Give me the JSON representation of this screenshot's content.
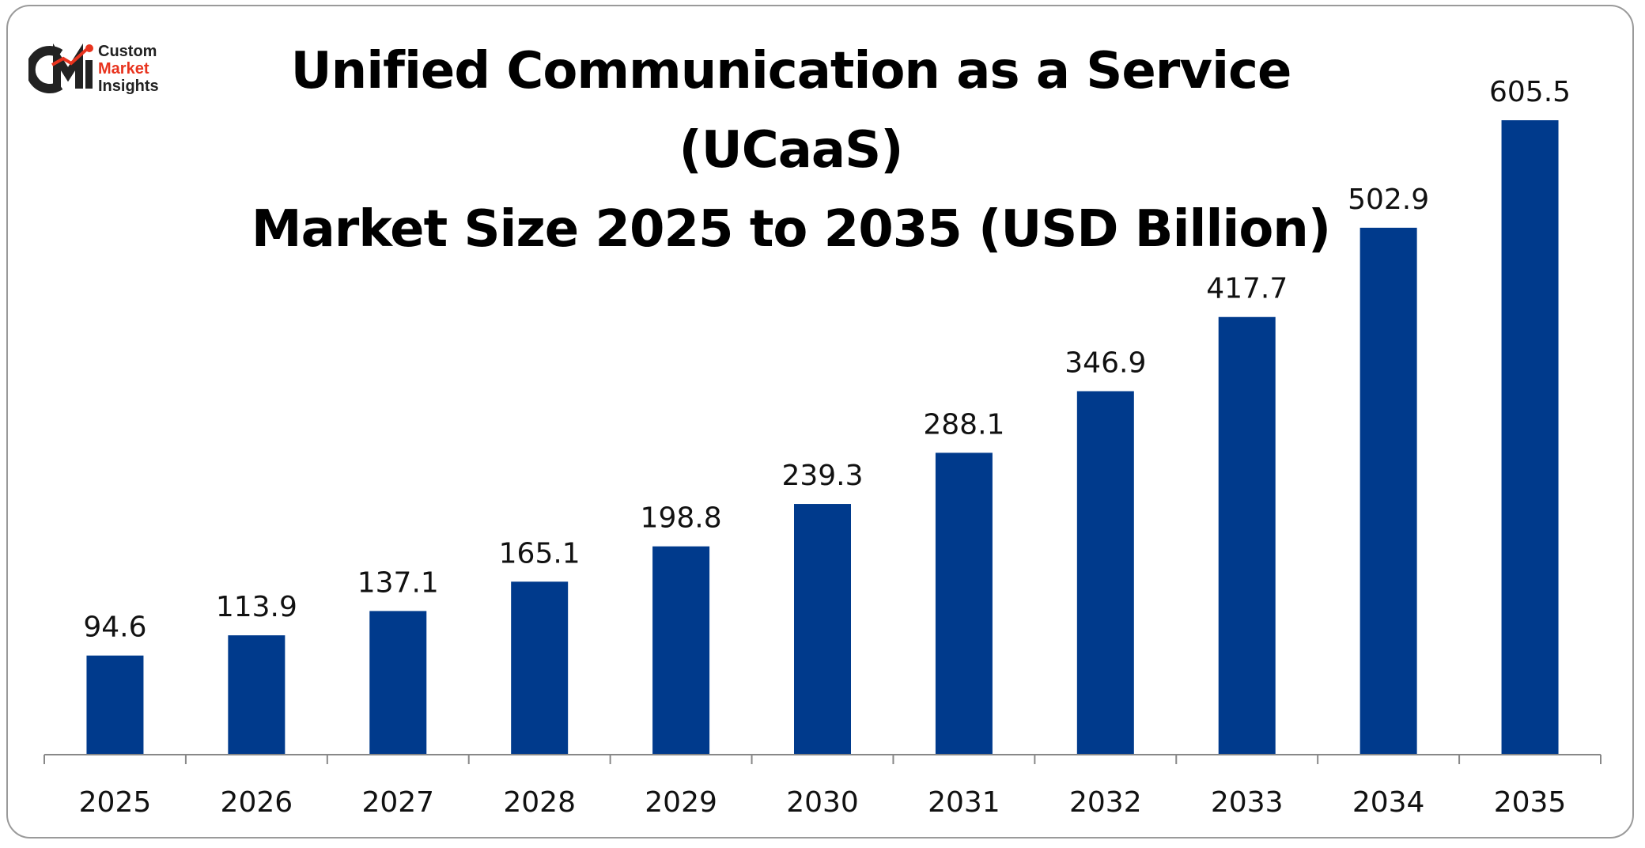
{
  "logo": {
    "mark": "CMI",
    "line1": "Custom",
    "line2": "Market",
    "line3": "Insights",
    "colors": {
      "dark": "#222222",
      "red": "#e8331e"
    }
  },
  "chart_data": {
    "type": "bar",
    "title": "Unified Communication as a Service (UCaaS) Market Size 2025 to 2035 (USD Billion)",
    "title_lines": [
      "Unified Communication as a Service (UCaaS)",
      "Market Size 2025 to 2035 (USD Billion)"
    ],
    "categories": [
      "2025",
      "2026",
      "2027",
      "2028",
      "2029",
      "2030",
      "2031",
      "2032",
      "2033",
      "2034",
      "2035"
    ],
    "values": [
      94.6,
      113.9,
      137.1,
      165.1,
      198.8,
      239.3,
      288.1,
      346.9,
      417.7,
      502.9,
      605.5
    ],
    "value_labels": [
      "94.6",
      "113.9",
      "137.1",
      "165.1",
      "198.8",
      "239.3",
      "288.1",
      "346.9",
      "417.7",
      "502.9",
      "605.5"
    ],
    "ylim": [
      0,
      640
    ],
    "xlabel": "",
    "ylabel": "",
    "grid": false,
    "legend": false,
    "bar_color": "#003a8c",
    "axis_color": "#888888"
  }
}
